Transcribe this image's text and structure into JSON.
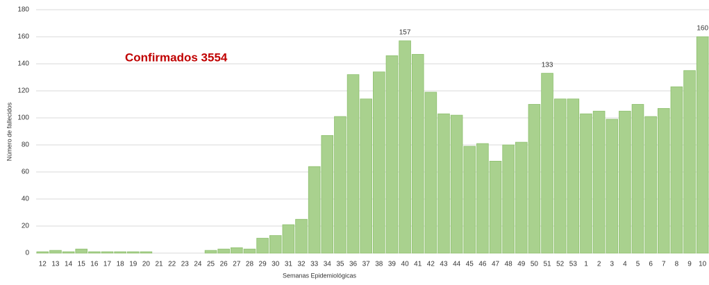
{
  "chart_data": {
    "type": "bar",
    "annotation": "Confirmados 3554",
    "y_label": "Número de fallecidos",
    "x_label": "Semanas Epidemiológicas",
    "categories": [
      "12",
      "13",
      "14",
      "15",
      "16",
      "17",
      "18",
      "19",
      "20",
      "21",
      "22",
      "23",
      "24",
      "25",
      "26",
      "27",
      "28",
      "29",
      "30",
      "31",
      "32",
      "33",
      "34",
      "35",
      "36",
      "37",
      "38",
      "39",
      "40",
      "41",
      "42",
      "43",
      "44",
      "45",
      "46",
      "47",
      "48",
      "49",
      "50",
      "51",
      "52",
      "53",
      "1",
      "2",
      "3",
      "4",
      "5",
      "6",
      "7",
      "8",
      "9",
      "10"
    ],
    "values": [
      1,
      2,
      1,
      3,
      1,
      1,
      1,
      1,
      1,
      0,
      0,
      0,
      0,
      2,
      3,
      4,
      3,
      11,
      13,
      21,
      25,
      64,
      87,
      101,
      132,
      114,
      134,
      146,
      157,
      147,
      119,
      103,
      102,
      79,
      81,
      68,
      80,
      82,
      110,
      133,
      114,
      114,
      103,
      105,
      99,
      105,
      110,
      101,
      107,
      123,
      135,
      160
    ],
    "value_labels": [
      null,
      null,
      null,
      null,
      null,
      null,
      null,
      null,
      null,
      null,
      null,
      null,
      null,
      null,
      null,
      null,
      null,
      null,
      null,
      null,
      null,
      null,
      null,
      null,
      null,
      null,
      null,
      null,
      "157",
      null,
      null,
      null,
      null,
      null,
      null,
      null,
      null,
      null,
      null,
      "133",
      null,
      null,
      null,
      null,
      null,
      null,
      null,
      null,
      null,
      null,
      null,
      "160"
    ],
    "color": "#a9d18e",
    "ylim": [
      0,
      180
    ],
    "yticks": [
      0,
      20,
      40,
      60,
      80,
      100,
      120,
      140,
      160,
      180
    ],
    "grid": true
  }
}
